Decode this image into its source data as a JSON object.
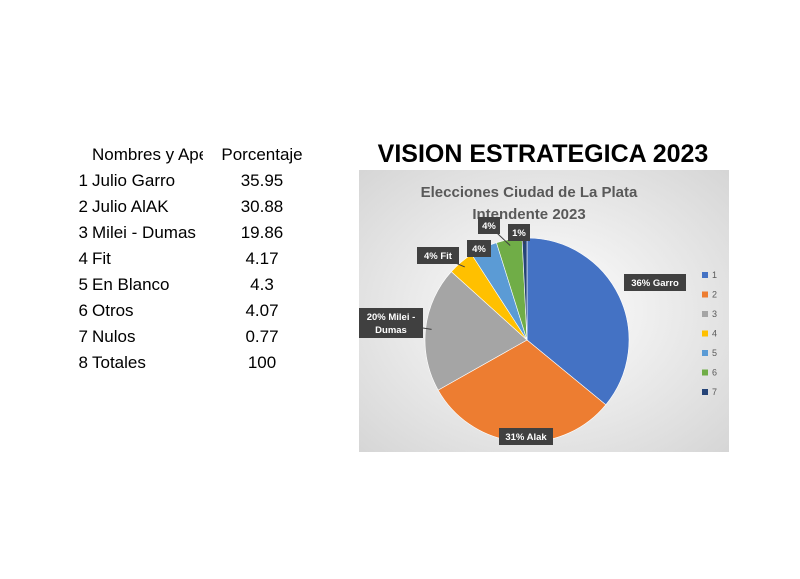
{
  "heading": "VISION ESTRATEGICA 2023",
  "table": {
    "headers": [
      "Nombres y Apellidos",
      "Porcentaje"
    ],
    "rows": [
      {
        "idx": "1",
        "name": "Julio Garro",
        "pct": "35.95"
      },
      {
        "idx": "2",
        "name": "Julio AlAK",
        "pct": "30.88"
      },
      {
        "idx": "3",
        "name": "Milei - Dumas",
        "pct": "19.86"
      },
      {
        "idx": "4",
        "name": "Fit",
        "pct": "4.17"
      },
      {
        "idx": "5",
        "name": "En Blanco",
        "pct": "4.3"
      },
      {
        "idx": "6",
        "name": "Otros",
        "pct": "4.07"
      },
      {
        "idx": "7",
        "name": "Nulos",
        "pct": "0.77"
      },
      {
        "idx": "8",
        "name": "Totales",
        "pct": "100"
      }
    ]
  },
  "chart_data": {
    "type": "pie",
    "title": "Elecciones Ciudad de La Plata",
    "subtitle": "Intendente 2023",
    "categories": [
      "1",
      "2",
      "3",
      "4",
      "5",
      "6",
      "7"
    ],
    "values": [
      35.95,
      30.88,
      19.86,
      4.17,
      4.3,
      4.07,
      0.77
    ],
    "data_labels": [
      "36% Garro",
      "31% Alak",
      "20% Milei - Dumas",
      "4% Fit",
      "4%",
      "4%",
      "1%"
    ],
    "colors": [
      "#4472C4",
      "#ED7D31",
      "#A5A5A5",
      "#FFC000",
      "#5B9BD5",
      "#70AD47",
      "#264478"
    ],
    "legend_position": "right"
  }
}
